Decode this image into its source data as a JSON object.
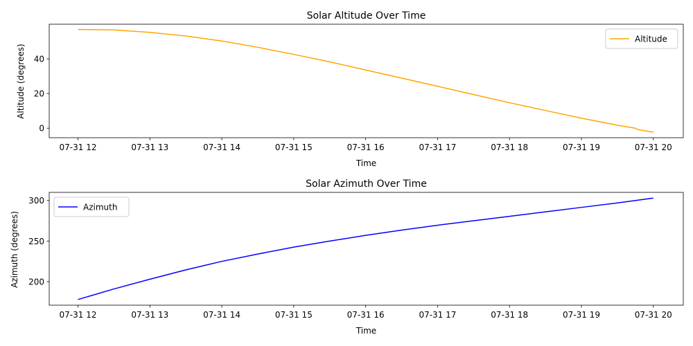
{
  "chart_data": [
    {
      "type": "line",
      "title": "Solar Altitude Over Time",
      "xlabel": "Time",
      "ylabel": "Altitude (degrees)",
      "x_ticks": [
        "07-31 12",
        "07-31 13",
        "07-31 14",
        "07-31 15",
        "07-31 16",
        "07-31 17",
        "07-31 18",
        "07-31 19",
        "07-31 20"
      ],
      "xlim": [
        "07-31 11:36",
        "07-31 20:25"
      ],
      "ylim": [
        -5.5,
        60
      ],
      "y_ticks": [
        0,
        20,
        40
      ],
      "legend": "top-right",
      "grid": false,
      "series": [
        {
          "name": "Altitude",
          "color": "#ffa500",
          "points": [
            [
              "07-31 12:00",
              57.0
            ],
            [
              "07-31 12:30",
              56.7
            ],
            [
              "07-31 13:00",
              55.3
            ],
            [
              "07-31 13:30",
              53.2
            ],
            [
              "07-31 14:00",
              50.3
            ],
            [
              "07-31 14:30",
              46.7
            ],
            [
              "07-31 15:00",
              42.6
            ],
            [
              "07-31 15:30",
              38.3
            ],
            [
              "07-31 16:00",
              33.6
            ],
            [
              "07-31 16:30",
              28.9
            ],
            [
              "07-31 17:00",
              24.2
            ],
            [
              "07-31 17:30",
              19.4
            ],
            [
              "07-31 18:00",
              14.7
            ],
            [
              "07-31 18:30",
              10.2
            ],
            [
              "07-31 19:00",
              5.8
            ],
            [
              "07-31 19:30",
              1.7
            ],
            [
              "07-31 19:45",
              0.0
            ],
            [
              "07-31 19:47",
              -0.8
            ],
            [
              "07-31 20:00",
              -2.3
            ]
          ]
        }
      ]
    },
    {
      "type": "line",
      "title": "Solar Azimuth Over Time",
      "xlabel": "Time",
      "ylabel": "Azimuth (degrees)",
      "x_ticks": [
        "07-31 12",
        "07-31 13",
        "07-31 14",
        "07-31 15",
        "07-31 16",
        "07-31 17",
        "07-31 18",
        "07-31 19",
        "07-31 20"
      ],
      "xlim": [
        "07-31 11:36",
        "07-31 20:25"
      ],
      "ylim": [
        171,
        310
      ],
      "y_ticks": [
        200,
        250,
        300
      ],
      "legend": "top-left",
      "grid": false,
      "series": [
        {
          "name": "Azimuth",
          "color": "#0000ff",
          "points": [
            [
              "07-31 12:00",
              178
            ],
            [
              "07-31 12:30",
              191
            ],
            [
              "07-31 13:00",
              203
            ],
            [
              "07-31 13:30",
              214.5
            ],
            [
              "07-31 14:00",
              225
            ],
            [
              "07-31 14:30",
              234
            ],
            [
              "07-31 15:00",
              242.5
            ],
            [
              "07-31 15:30",
              250
            ],
            [
              "07-31 16:00",
              257
            ],
            [
              "07-31 16:30",
              263.5
            ],
            [
              "07-31 17:00",
              269.5
            ],
            [
              "07-31 17:30",
              275
            ],
            [
              "07-31 18:00",
              280.5
            ],
            [
              "07-31 18:30",
              286
            ],
            [
              "07-31 19:00",
              291.5
            ],
            [
              "07-31 19:30",
              297
            ],
            [
              "07-31 20:00",
              303
            ]
          ]
        }
      ]
    }
  ]
}
